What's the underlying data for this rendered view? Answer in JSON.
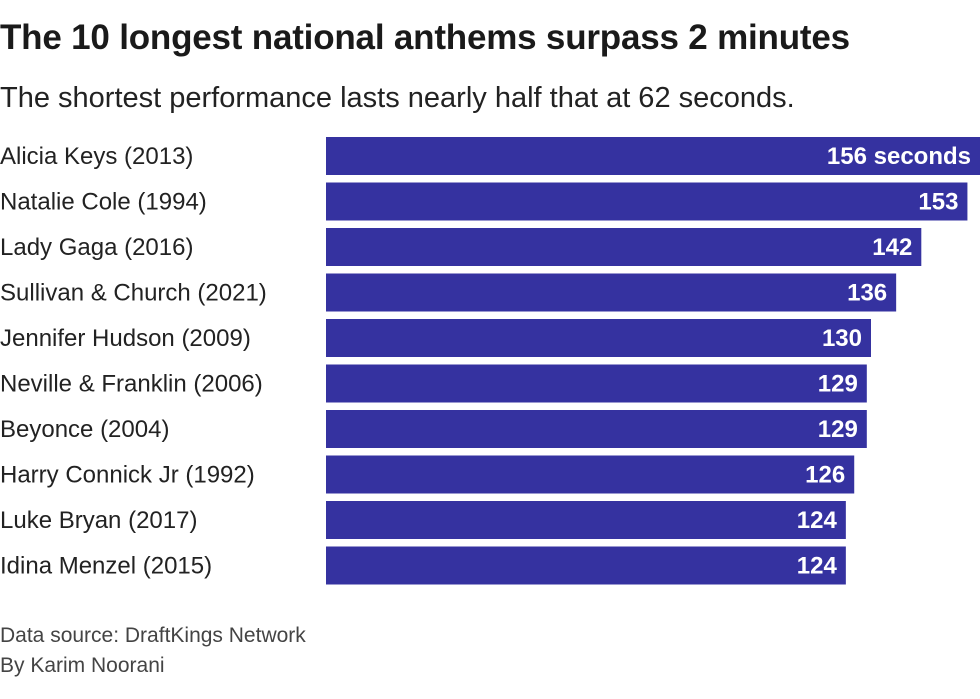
{
  "title": "The 10 longest national anthems surpass 2 minutes",
  "subtitle": "The shortest performance lasts nearly half that at 62 seconds.",
  "footer": {
    "source": "Data source: DraftKings Network",
    "byline": "By Karim Noorani"
  },
  "colors": {
    "bar": "#3532a0",
    "label_text": "#ffffff",
    "category_text": "#222222"
  },
  "chart_data": {
    "type": "bar",
    "orientation": "horizontal",
    "title": "The 10 longest national anthems surpass 2 minutes",
    "subtitle": "The shortest performance lasts nearly half that at 62 seconds.",
    "xlabel": "",
    "ylabel": "",
    "unit_label": "seconds",
    "xlim": [
      0,
      156
    ],
    "grid": false,
    "legend": "none",
    "categories": [
      "Alicia Keys (2013)",
      "Natalie Cole (1994)",
      "Lady Gaga (2016)",
      "Sullivan & Church (2021)",
      "Jennifer Hudson (2009)",
      "Neville & Franklin (2006)",
      "Beyonce (2004)",
      "Harry Connick Jr (1992)",
      "Luke Bryan (2017)",
      "Idina Menzel (2015)"
    ],
    "values": [
      156,
      153,
      142,
      136,
      130,
      129,
      129,
      126,
      124,
      124
    ],
    "data_labels": [
      "156 seconds",
      "153",
      "142",
      "136",
      "130",
      "129",
      "129",
      "126",
      "124",
      "124"
    ]
  }
}
